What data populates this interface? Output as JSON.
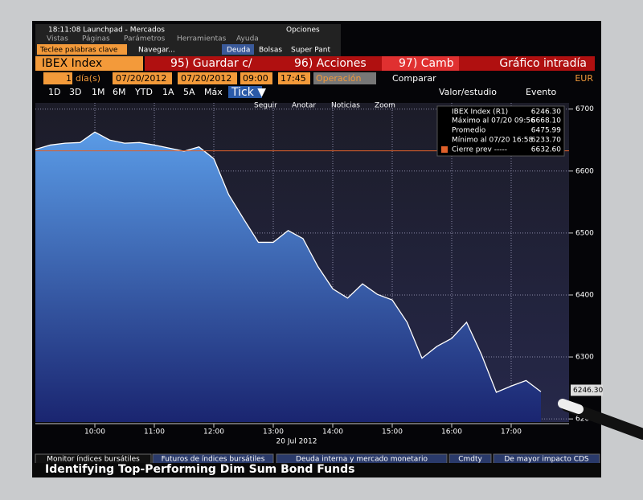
{
  "window": {
    "title": "18:11:08 Launchpad - Mercados",
    "options": "Opciones",
    "menu": [
      "Vistas",
      "Páginas",
      "Parámetros",
      "Herramientas",
      "Ayuda"
    ],
    "search": "Teclee palabras clave",
    "navigate": "Navegar...",
    "tabs": [
      "Deuda",
      "Bolsas",
      "Super Pant"
    ]
  },
  "toolbar": {
    "security": "IBEX Index",
    "buttons": [
      "95) Guardar c/",
      "96) Acciones",
      "97) Camb"
    ],
    "view": "Gráfico intradía",
    "period_count": "1",
    "period_unit": "día(s)",
    "start_date": "07/20/2012",
    "end_date": "07/20/2012",
    "start_time": "09:00",
    "end_time": "17:45",
    "mode": "Operación",
    "compare": "Comparar",
    "currency": "EUR",
    "ranges": [
      "1D",
      "3D",
      "1M",
      "6M",
      "YTD",
      "1A",
      "5A",
      "Máx"
    ],
    "interval": "Tick ▼",
    "study": "Valor/estudio",
    "event": "Evento",
    "tools": [
      "Seguir",
      "Anotar",
      "Noticias",
      "Zoom"
    ]
  },
  "chart_data": {
    "type": "area",
    "color": "#4a86d8",
    "x_label": "20 Jul 2012",
    "categories": [
      null,
      null,
      null,
      null,
      "10:00",
      null,
      null,
      null,
      "11:00",
      null,
      null,
      null,
      "12:00",
      null,
      null,
      null,
      "13:00",
      null,
      null,
      null,
      "14:00",
      null,
      null,
      null,
      "15:00",
      null,
      null,
      null,
      "16:00",
      null,
      null,
      null,
      "17:00",
      null,
      null
    ],
    "series": [
      {
        "name": "IBEX Index (R1)",
        "color": "#4a86d8",
        "values": [
          6635,
          6642,
          6645,
          6646,
          6663,
          6650,
          6645,
          6646,
          6642,
          6637,
          6632,
          6639,
          6620,
          6562,
          6523,
          6485,
          6485,
          6504,
          6491,
          6446,
          6410,
          6395,
          6418,
          6401,
          6392,
          6356,
          6298,
          6317,
          6330,
          6356,
          6304,
          6243,
          6253,
          6262,
          6244
        ]
      }
    ],
    "ylim": [
      6195,
      6710
    ],
    "yticks": [
      6200,
      6300,
      6400,
      6500,
      6600,
      6700
    ],
    "grid": true,
    "last": {
      "value": 6246.3,
      "label": "6246.30"
    },
    "reference": {
      "name": "Cierre prev -----",
      "value": 6632.6,
      "label": "6632.60",
      "color": "#e0602a"
    },
    "stats": [
      {
        "name": "Máximo al 07/20 09:56",
        "label": "6668.10"
      },
      {
        "name": "Promedio",
        "label": "6475.99"
      },
      {
        "name": "Mínimo al 07/20 16:58",
        "label": "6233.70"
      }
    ]
  },
  "footer": {
    "tabs": [
      "Monitor índices bursátiles",
      "Futuros de índices bursátiles",
      "Deuda interna y mercado monetario",
      "Cmdty",
      "De mayor impacto CDS"
    ],
    "ticker": "Identifying Top-Performing Dim Sum Bond Funds"
  }
}
